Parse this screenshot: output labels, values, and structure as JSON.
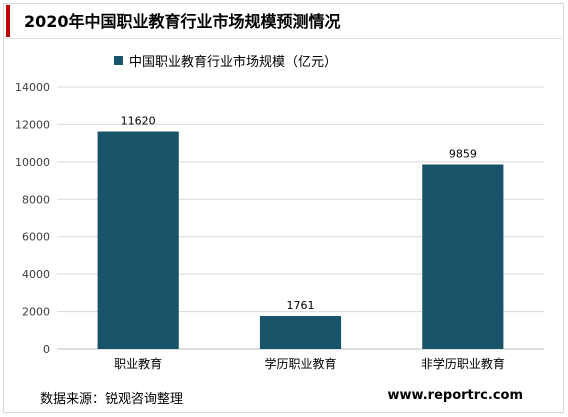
{
  "header": {
    "title": "2020年中国职业教育行业市场规模预测情况",
    "accent_color": "#c00000"
  },
  "chart_data": {
    "type": "bar",
    "categories": [
      "职业教育",
      "学历职业教育",
      "非学历职业教育"
    ],
    "series": [
      {
        "name": "中国职业教育行业市场规模（亿元）",
        "values": [
          11620,
          1761,
          9859
        ],
        "color": "#175369"
      }
    ],
    "data_labels": [
      "11620",
      "1761",
      "9859"
    ],
    "yticks": [
      0,
      2000,
      4000,
      6000,
      8000,
      10000,
      12000,
      14000
    ],
    "ylim": [
      0,
      14000
    ],
    "grid": true,
    "legend_position": "top-left"
  },
  "footer": {
    "source": "数据来源：锐观咨询整理",
    "website": "www.reportrc.com"
  }
}
